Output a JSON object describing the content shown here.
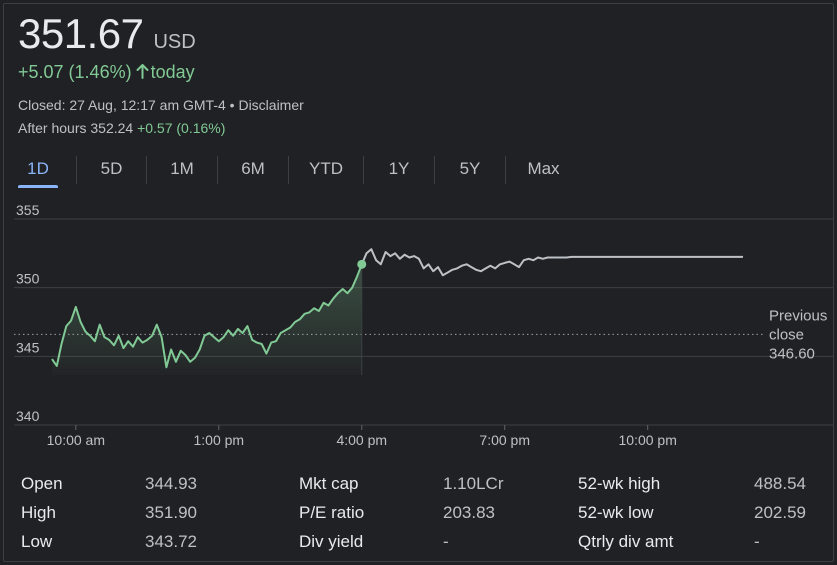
{
  "quote": {
    "price": "351.67",
    "currency": "USD",
    "change": "+5.07 (1.46%)",
    "change_suffix": "today",
    "closed_text": "Closed: 27 Aug, 12:17 am GMT-4 • Disclaimer",
    "after_hours_label": "After hours 352.24",
    "after_hours_change": "+0.57 (0.16%)",
    "up_color": "#81c995"
  },
  "tabs": [
    {
      "label": "1D",
      "active": true
    },
    {
      "label": "5D",
      "active": false
    },
    {
      "label": "1M",
      "active": false
    },
    {
      "label": "6M",
      "active": false
    },
    {
      "label": "YTD",
      "active": false
    },
    {
      "label": "1Y",
      "active": false
    },
    {
      "label": "5Y",
      "active": false
    },
    {
      "label": "Max",
      "active": false
    }
  ],
  "chart_data": {
    "type": "line",
    "ylim": [
      340,
      355
    ],
    "y_ticks": [
      "355",
      "350",
      "345",
      "340"
    ],
    "x_ticks": [
      "10:00 am",
      "1:00 pm",
      "4:00 pm",
      "7:00 pm",
      "10:00 pm"
    ],
    "x_tick_hours": [
      10,
      13,
      16,
      19,
      22
    ],
    "xlim": [
      9.5,
      24
    ],
    "previous_close": 346.6,
    "previous_close_label_1": "Previous",
    "previous_close_label_2": "close",
    "previous_close_value": "346.60",
    "regular_color": "#81c995",
    "after_hours_color": "#bdc1c6",
    "series": [
      {
        "values_x": [
          9.5,
          9.6,
          9.7,
          9.8,
          9.9,
          10.0,
          10.1,
          10.2,
          10.3,
          10.4,
          10.5,
          10.6,
          10.7,
          10.8,
          10.9,
          11.0,
          11.1,
          11.2,
          11.3,
          11.4,
          11.5,
          11.6,
          11.7,
          11.8,
          11.9,
          12.0,
          12.1,
          12.2,
          12.3,
          12.4,
          12.5,
          12.6,
          12.7,
          12.8,
          12.9,
          13.0,
          13.1,
          13.2,
          13.3,
          13.4,
          13.5,
          13.6,
          13.7,
          13.8,
          13.9,
          14.0,
          14.1,
          14.2,
          14.3,
          14.4,
          14.5,
          14.6,
          14.7,
          14.8,
          14.9,
          15.0,
          15.1,
          15.2,
          15.3,
          15.4,
          15.5,
          15.6,
          15.7,
          15.8,
          15.9,
          16.0
        ],
        "values_y": [
          344.8,
          344.3,
          345.9,
          347.2,
          347.6,
          348.6,
          347.5,
          346.8,
          346.5,
          346.1,
          347.3,
          346.4,
          346.2,
          345.8,
          346.5,
          345.6,
          346.1,
          345.7,
          346.4,
          346.0,
          346.2,
          346.5,
          347.3,
          346.4,
          344.2,
          345.5,
          344.6,
          345.4,
          345.1,
          344.6,
          344.9,
          345.5,
          346.5,
          346.7,
          346.4,
          346.1,
          346.4,
          346.9,
          346.5,
          347.0,
          346.7,
          347.2,
          346.2,
          346.0,
          345.9,
          345.2,
          346.0,
          346.1,
          346.7,
          346.9,
          347.1,
          347.5,
          347.7,
          348.1,
          348.2,
          348.5,
          348.3,
          348.9,
          348.7,
          349.2,
          349.6,
          349.9,
          349.6,
          350.0,
          350.8,
          351.7
        ]
      },
      {
        "values_x": [
          16.0,
          16.1,
          16.2,
          16.3,
          16.4,
          16.5,
          16.6,
          16.7,
          16.8,
          16.9,
          17.0,
          17.1,
          17.2,
          17.3,
          17.4,
          17.5,
          17.6,
          17.7,
          17.8,
          17.9,
          18.0,
          18.1,
          18.2,
          18.3,
          18.4,
          18.5,
          18.6,
          18.7,
          18.8,
          18.9,
          19.0,
          19.1,
          19.2,
          19.3,
          19.4,
          19.5,
          19.6,
          19.7,
          19.8,
          19.9,
          20.0,
          20.1,
          20.2,
          20.3,
          20.4,
          20.5,
          20.6,
          20.7,
          20.8,
          21.0,
          21.5,
          22.0,
          22.5,
          23.0,
          23.5,
          24.0
        ],
        "values_y": [
          351.7,
          352.5,
          352.8,
          352.0,
          351.7,
          352.6,
          352.3,
          352.5,
          352.1,
          352.4,
          352.2,
          352.3,
          352.1,
          351.4,
          351.7,
          351.2,
          351.5,
          350.9,
          351.1,
          351.3,
          351.4,
          351.6,
          351.7,
          351.5,
          351.3,
          351.2,
          351.4,
          351.6,
          351.4,
          351.7,
          351.8,
          351.9,
          351.7,
          351.5,
          352.0,
          352.1,
          352.0,
          352.2,
          352.1,
          352.2,
          352.2,
          352.2,
          352.2,
          352.2,
          352.24,
          352.24,
          352.24,
          352.24,
          352.24,
          352.24,
          352.24,
          352.24,
          352.24,
          352.24,
          352.24,
          352.24
        ]
      }
    ]
  },
  "stats": [
    [
      {
        "label": "Open",
        "value": "344.93"
      },
      {
        "label": "High",
        "value": "351.90"
      },
      {
        "label": "Low",
        "value": "343.72"
      }
    ],
    [
      {
        "label": "Mkt cap",
        "value": "1.10LCr"
      },
      {
        "label": "P/E ratio",
        "value": "203.83"
      },
      {
        "label": "Div yield",
        "value": "-"
      }
    ],
    [
      {
        "label": "52-wk high",
        "value": "488.54"
      },
      {
        "label": "52-wk low",
        "value": "202.59"
      },
      {
        "label": "Qtrly div amt",
        "value": "-"
      }
    ]
  ]
}
